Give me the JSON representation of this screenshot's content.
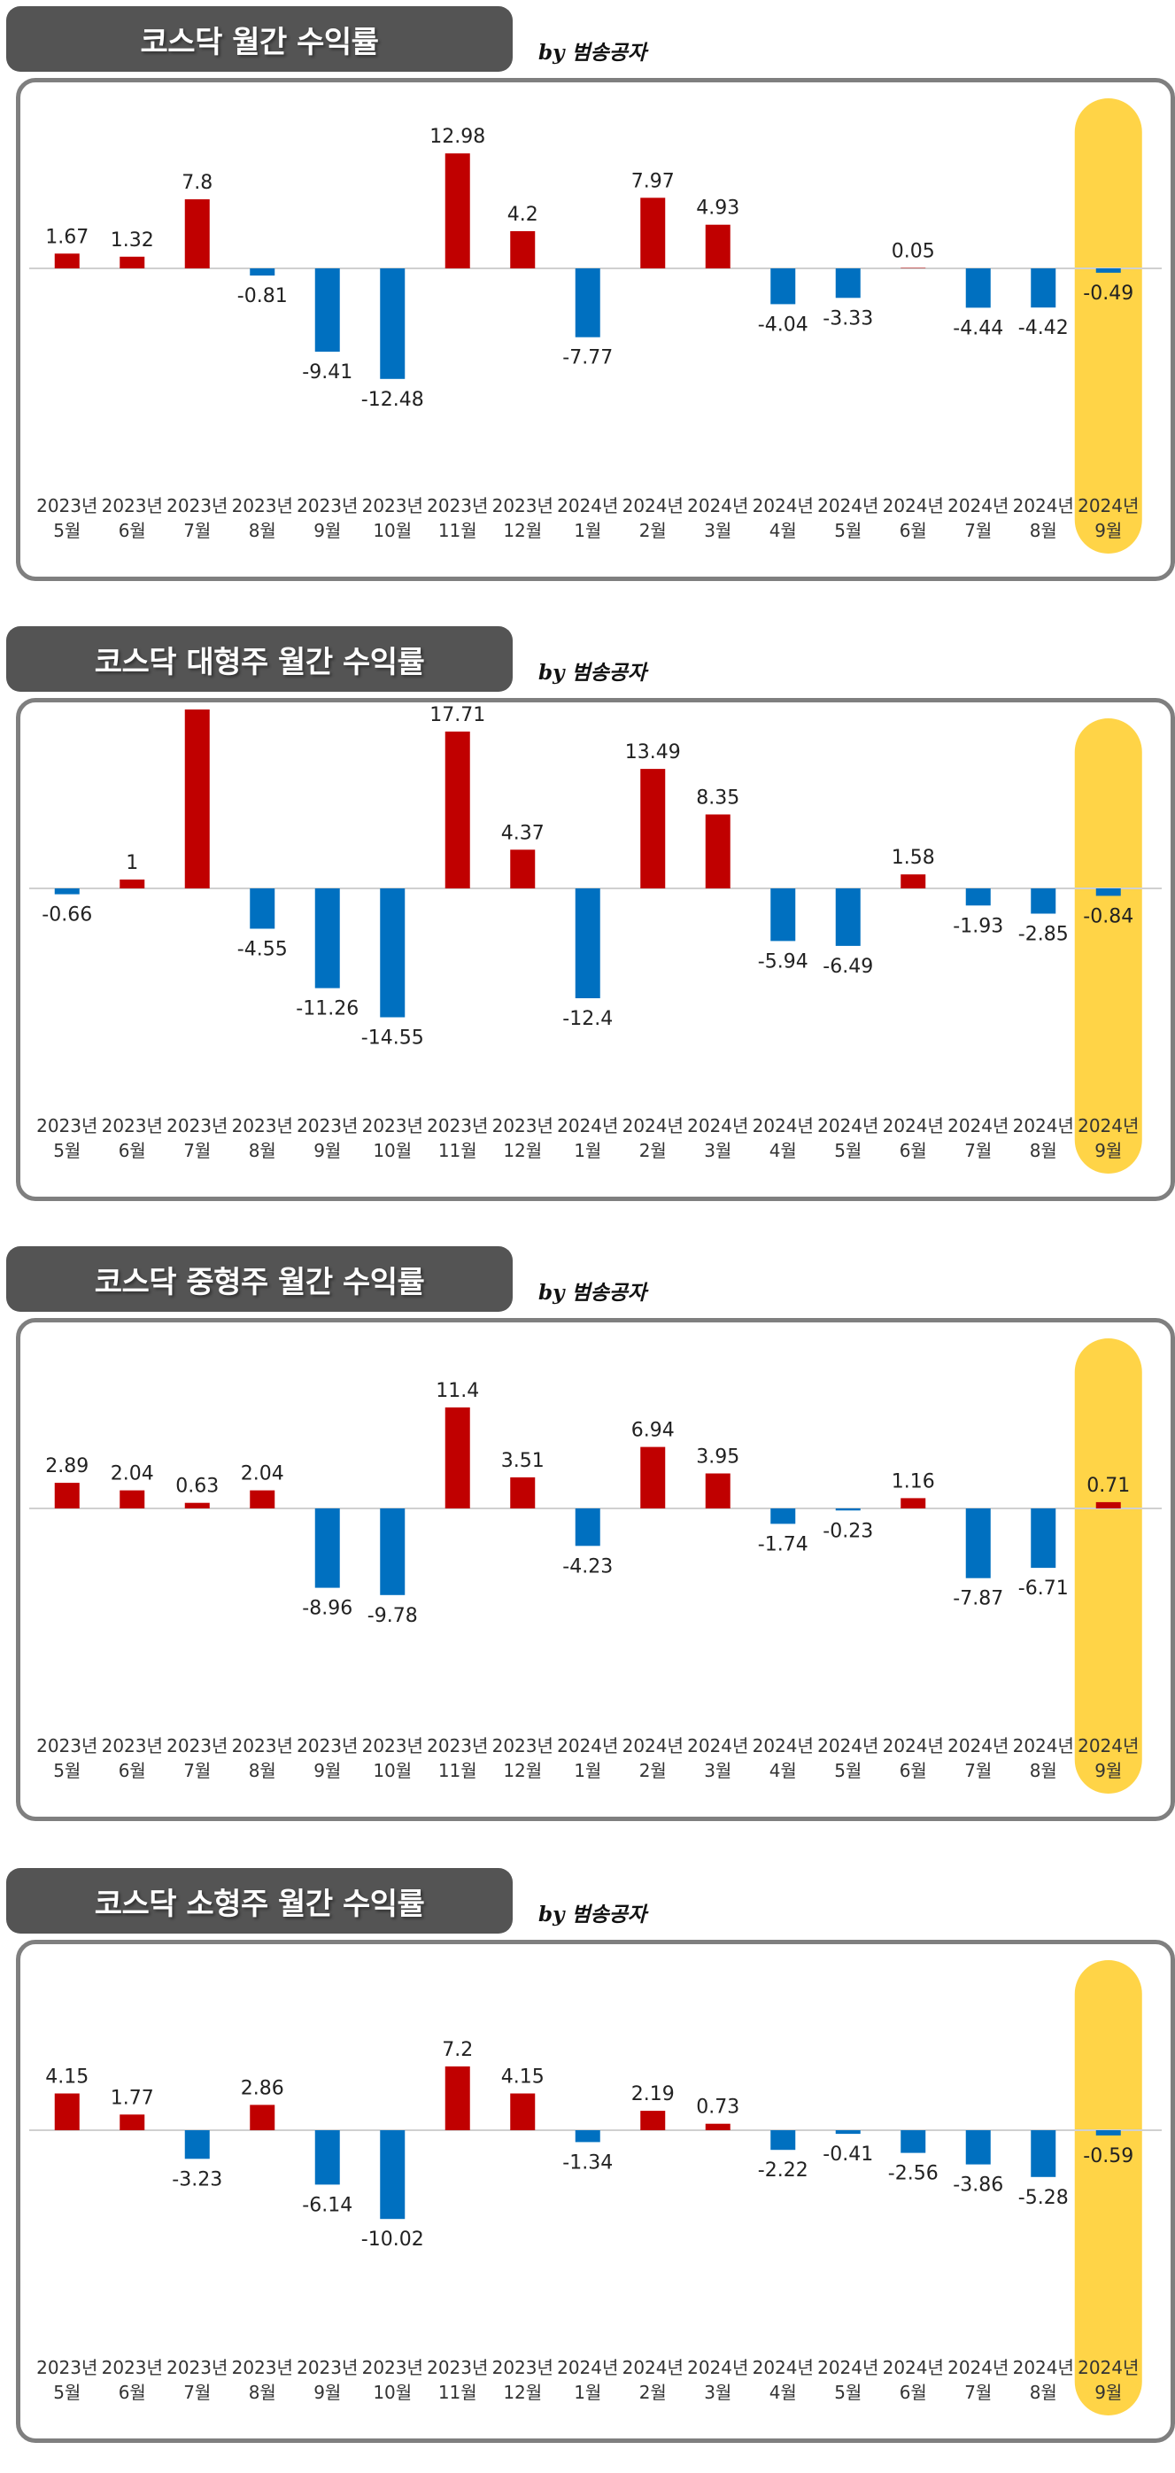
{
  "colors": {
    "positive": "#c00000",
    "negative": "#0070c0",
    "highlight": "#ffd447",
    "axis": "#d0d0d0"
  },
  "chart_data": [
    {
      "type": "bar",
      "title": "코스닥 월간 수익률",
      "byline": "by 범송공자",
      "categories": [
        [
          "2023년",
          "5월"
        ],
        [
          "2023년",
          "6월"
        ],
        [
          "2023년",
          "7월"
        ],
        [
          "2023년",
          "8월"
        ],
        [
          "2023년",
          "9월"
        ],
        [
          "2023년",
          "10월"
        ],
        [
          "2023년",
          "11월"
        ],
        [
          "2023년",
          "12월"
        ],
        [
          "2024년",
          "1월"
        ],
        [
          "2024년",
          "2월"
        ],
        [
          "2024년",
          "3월"
        ],
        [
          "2024년",
          "4월"
        ],
        [
          "2024년",
          "5월"
        ],
        [
          "2024년",
          "6월"
        ],
        [
          "2024년",
          "7월"
        ],
        [
          "2024년",
          "8월"
        ],
        [
          "2024년",
          "9월"
        ]
      ],
      "values": [
        1.67,
        1.32,
        7.8,
        -0.81,
        -9.41,
        -12.48,
        12.98,
        4.2,
        -7.77,
        7.97,
        4.93,
        -4.04,
        -3.33,
        0.05,
        -4.44,
        -4.42,
        -0.49
      ],
      "highlight_index": 16,
      "ylim": [
        -13,
        13
      ]
    },
    {
      "type": "bar",
      "title": "코스닥 대형주 월간 수익률",
      "byline": "by 범송공자",
      "categories": [
        [
          "2023년",
          "5월"
        ],
        [
          "2023년",
          "6월"
        ],
        [
          "2023년",
          "7월"
        ],
        [
          "2023년",
          "8월"
        ],
        [
          "2023년",
          "9월"
        ],
        [
          "2023년",
          "10월"
        ],
        [
          "2023년",
          "11월"
        ],
        [
          "2023년",
          "12월"
        ],
        [
          "2024년",
          "1월"
        ],
        [
          "2024년",
          "2월"
        ],
        [
          "2024년",
          "3월"
        ],
        [
          "2024년",
          "4월"
        ],
        [
          "2024년",
          "5월"
        ],
        [
          "2024년",
          "6월"
        ],
        [
          "2024년",
          "7월"
        ],
        [
          "2024년",
          "8월"
        ],
        [
          "2024년",
          "9월"
        ]
      ],
      "values": [
        -0.66,
        1,
        20.2,
        -4.55,
        -11.26,
        -14.55,
        17.71,
        4.37,
        -12.4,
        13.49,
        8.35,
        -5.94,
        -6.49,
        1.58,
        -1.93,
        -2.85,
        -0.84
      ],
      "highlight_index": 16,
      "ylim": [
        -15,
        20
      ]
    },
    {
      "type": "bar",
      "title": "코스닥 중형주 월간 수익률",
      "byline": "by 범송공자",
      "categories": [
        [
          "2023년",
          "5월"
        ],
        [
          "2023년",
          "6월"
        ],
        [
          "2023년",
          "7월"
        ],
        [
          "2023년",
          "8월"
        ],
        [
          "2023년",
          "9월"
        ],
        [
          "2023년",
          "10월"
        ],
        [
          "2023년",
          "11월"
        ],
        [
          "2023년",
          "12월"
        ],
        [
          "2024년",
          "1월"
        ],
        [
          "2024년",
          "2월"
        ],
        [
          "2024년",
          "3월"
        ],
        [
          "2024년",
          "4월"
        ],
        [
          "2024년",
          "5월"
        ],
        [
          "2024년",
          "6월"
        ],
        [
          "2024년",
          "7월"
        ],
        [
          "2024년",
          "8월"
        ],
        [
          "2024년",
          "9월"
        ]
      ],
      "values": [
        2.89,
        2.04,
        0.63,
        2.04,
        -8.96,
        -9.78,
        11.4,
        3.51,
        -4.23,
        6.94,
        3.95,
        -1.74,
        -0.23,
        1.16,
        -7.87,
        -6.71,
        0.71
      ],
      "highlight_index": 16,
      "ylim": [
        -10,
        11.4
      ]
    },
    {
      "type": "bar",
      "title": "코스닥 소형주 월간 수익률",
      "byline": "by 범송공자",
      "categories": [
        [
          "2023년",
          "5월"
        ],
        [
          "2023년",
          "6월"
        ],
        [
          "2023년",
          "7월"
        ],
        [
          "2023년",
          "8월"
        ],
        [
          "2023년",
          "9월"
        ],
        [
          "2023년",
          "10월"
        ],
        [
          "2023년",
          "11월"
        ],
        [
          "2023년",
          "12월"
        ],
        [
          "2024년",
          "1월"
        ],
        [
          "2024년",
          "2월"
        ],
        [
          "2024년",
          "3월"
        ],
        [
          "2024년",
          "4월"
        ],
        [
          "2024년",
          "5월"
        ],
        [
          "2024년",
          "6월"
        ],
        [
          "2024년",
          "7월"
        ],
        [
          "2024년",
          "8월"
        ],
        [
          "2024년",
          "9월"
        ]
      ],
      "values": [
        4.15,
        1.77,
        -3.23,
        2.86,
        -6.14,
        -10.02,
        7.2,
        4.15,
        -1.34,
        2.19,
        0.73,
        -2.22,
        -0.41,
        -2.56,
        -3.86,
        -5.28,
        -0.59
      ],
      "highlight_index": 16,
      "ylim": [
        -10.02,
        7.2
      ]
    }
  ]
}
